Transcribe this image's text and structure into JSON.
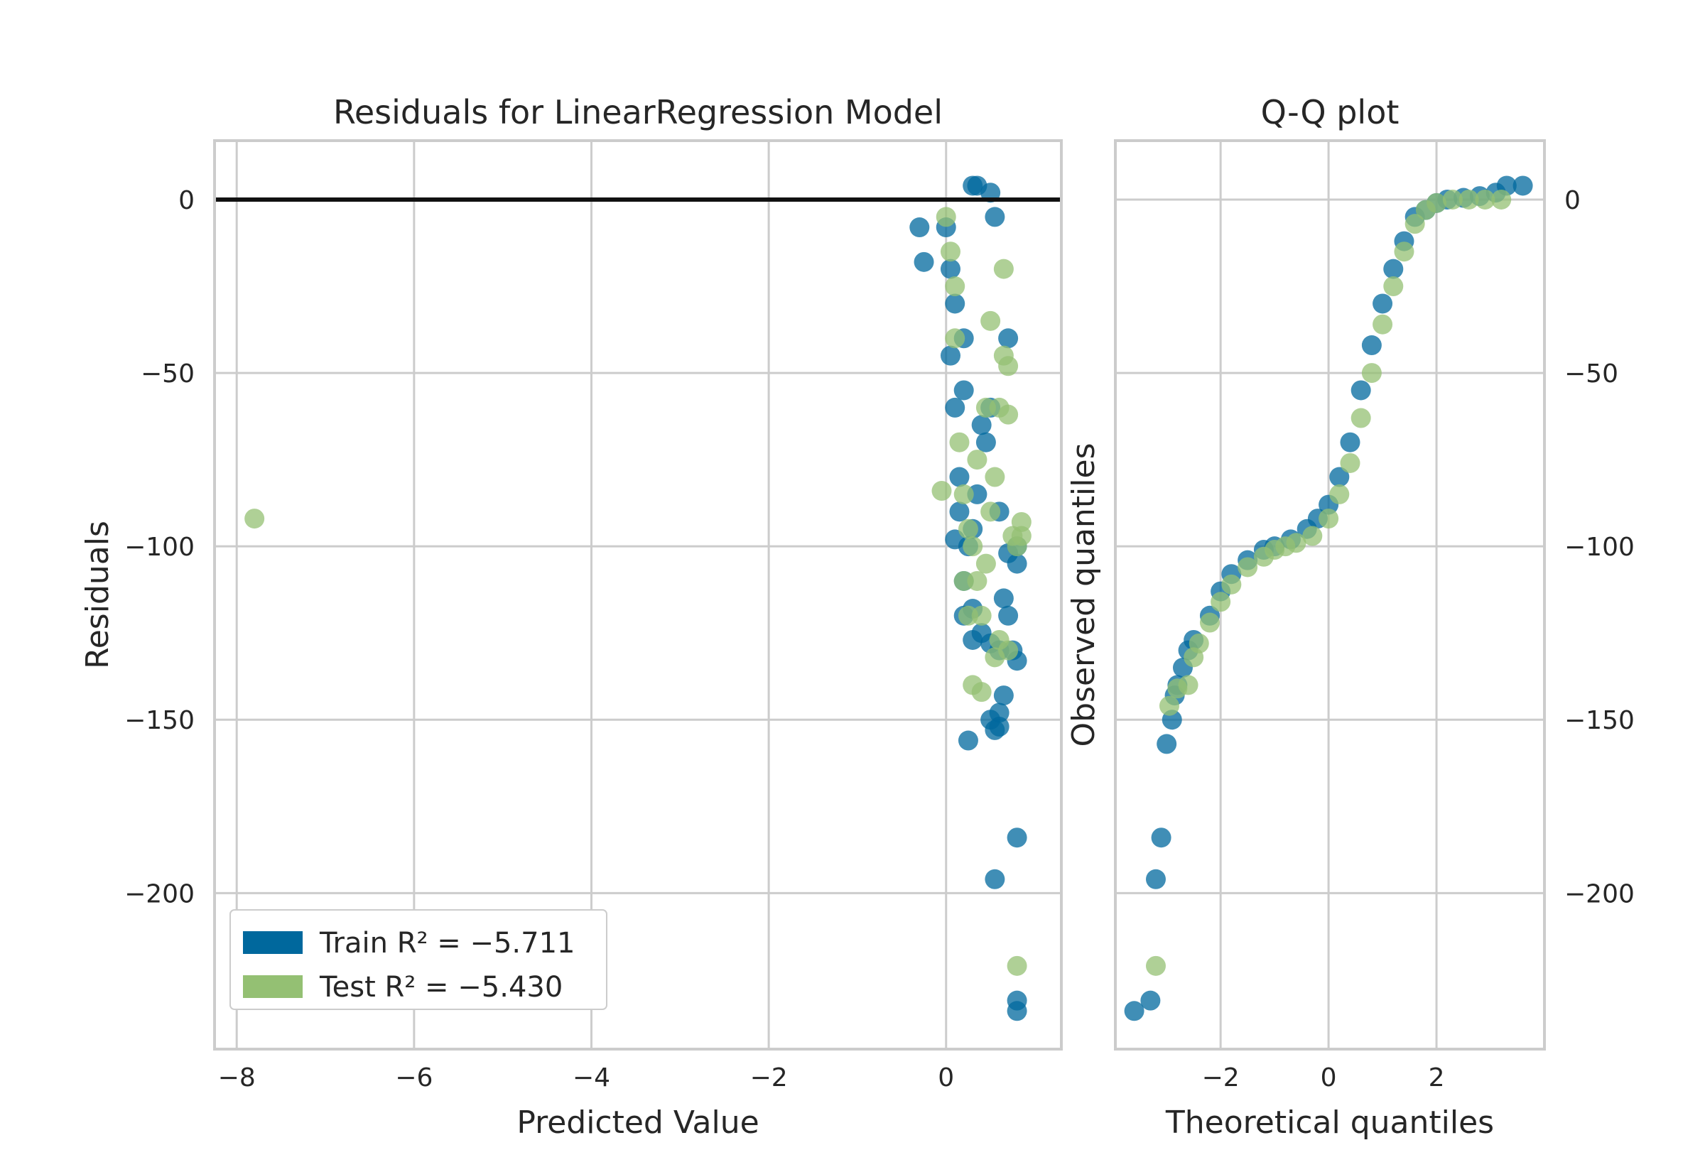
{
  "colors": {
    "train": "#00689d",
    "test": "#94c073",
    "grid": "#cccccc",
    "zero_line": "#111111",
    "text": "#262626"
  },
  "chart_data": [
    {
      "type": "scatter",
      "title": "Residuals for LinearRegression Model",
      "xlabel": "Predicted Value",
      "ylabel": "Residuals",
      "xlim": [
        -8.25,
        1.3
      ],
      "ylim": [
        -245,
        17
      ],
      "xticks": [
        -8,
        -6,
        -4,
        -2,
        0
      ],
      "xtick_labels": [
        "−8",
        "−6",
        "−4",
        "−2",
        "0"
      ],
      "yticks": [
        0,
        -50,
        -100,
        -150,
        -200
      ],
      "ytick_labels": [
        "0",
        "−50",
        "−100",
        "−150",
        "−200"
      ],
      "grid": true,
      "hline_y": 0,
      "legend_position": "lower-left",
      "legend": [
        {
          "series": "Train",
          "label": "Train R² = −5.711"
        },
        {
          "series": "Test",
          "label": "Test R² = −5.430"
        }
      ],
      "series": [
        {
          "name": "Train",
          "x": [
            0.3,
            0.35,
            0.5,
            -0.3,
            -0.25,
            0.0,
            0.1,
            0.2,
            0.15,
            0.3,
            0.5,
            0.6,
            0.1,
            0.05,
            0.7,
            0.8,
            0.6,
            0.5,
            0.4,
            0.3,
            0.2,
            0.7,
            0.8,
            0.75,
            0.8,
            0.65,
            0.6,
            0.55,
            0.8,
            0.55,
            0.8,
            0.8,
            0.05,
            0.1,
            0.15,
            0.2,
            0.25,
            0.45,
            0.55,
            0.65,
            0.3,
            0.35,
            0.4,
            0.2,
            0.5,
            0.6,
            0.7,
            0.25
          ],
          "y": [
            4,
            4,
            2,
            -8,
            -18,
            -8,
            -30,
            -55,
            -80,
            -127,
            -150,
            -152,
            -98,
            -45,
            -102,
            -100,
            -130,
            -128,
            -125,
            -118,
            -120,
            -40,
            -105,
            -130,
            -133,
            -143,
            -148,
            -153,
            -184,
            -196,
            -231,
            -234,
            -20,
            -60,
            -90,
            -110,
            -100,
            -70,
            -5,
            -115,
            -95,
            -85,
            -65,
            -40,
            -60,
            -90,
            -120,
            -156
          ]
        },
        {
          "name": "Test",
          "x": [
            -7.8,
            0.05,
            0.1,
            0.15,
            0.2,
            0.25,
            0.3,
            0.35,
            0.4,
            0.45,
            0.5,
            0.55,
            0.6,
            0.65,
            0.7,
            0.75,
            0.85,
            0.85,
            0.8,
            0.7,
            0.6,
            0.55,
            0.4,
            0.3,
            0.2,
            -0.05,
            0.8,
            0.0,
            0.1,
            0.5,
            0.65,
            0.7,
            0.35,
            0.45,
            0.25
          ],
          "y": [
            -92,
            -15,
            -40,
            -70,
            -85,
            -95,
            -100,
            -110,
            -120,
            -105,
            -90,
            -80,
            -60,
            -45,
            -62,
            -97,
            -93,
            -97,
            -100,
            -130,
            -127,
            -132,
            -142,
            -140,
            -110,
            -84,
            -221,
            -5,
            -25,
            -35,
            -20,
            -48,
            -75,
            -60,
            -120
          ]
        }
      ]
    },
    {
      "type": "scatter",
      "title": "Q-Q plot",
      "xlabel": "Theoretical quantiles",
      "ylabel": "Observed quantiles",
      "xlim": [
        -3.95,
        4.0
      ],
      "ylim": [
        -245,
        17
      ],
      "xticks": [
        -2,
        0,
        2
      ],
      "xtick_labels": [
        "−2",
        "0",
        "2"
      ],
      "yticks": [
        0,
        -50,
        -100,
        -150,
        -200
      ],
      "ytick_labels": [
        "0",
        "−50",
        "−100",
        "−150",
        "−200"
      ],
      "ytick_side": "right",
      "grid": true,
      "series": [
        {
          "name": "Train",
          "x": [
            -3.6,
            -3.3,
            -3.2,
            -3.1,
            -3.0,
            -2.9,
            -2.85,
            -2.8,
            -2.7,
            -2.6,
            -2.5,
            -2.2,
            -2.0,
            -1.8,
            -1.5,
            -1.2,
            -1.0,
            -0.7,
            -0.4,
            -0.2,
            0.0,
            0.2,
            0.4,
            0.6,
            0.8,
            1.0,
            1.2,
            1.4,
            1.6,
            1.8,
            2.0,
            2.2,
            2.5,
            2.8,
            3.1,
            3.3,
            3.6
          ],
          "y": [
            -234,
            -231,
            -196,
            -184,
            -157,
            -150,
            -143,
            -140,
            -135,
            -130,
            -127,
            -120,
            -113,
            -108,
            -104,
            -101,
            -100,
            -98,
            -95,
            -92,
            -88,
            -80,
            -70,
            -55,
            -42,
            -30,
            -20,
            -12,
            -5,
            -3,
            -1,
            0,
            0.5,
            1,
            2,
            4,
            4
          ]
        },
        {
          "name": "Test",
          "x": [
            -3.2,
            -2.95,
            -2.8,
            -2.6,
            -2.5,
            -2.4,
            -2.2,
            -2.0,
            -1.8,
            -1.5,
            -1.2,
            -1.0,
            -0.8,
            -0.6,
            -0.3,
            0.0,
            0.2,
            0.4,
            0.6,
            0.8,
            1.0,
            1.2,
            1.4,
            1.6,
            1.8,
            2.0,
            2.3,
            2.6,
            2.9,
            3.2
          ],
          "y": [
            -221,
            -146,
            -141,
            -140,
            -132,
            -128,
            -122,
            -116,
            -111,
            -106,
            -103,
            -101,
            -100,
            -99,
            -97,
            -92,
            -85,
            -76,
            -63,
            -50,
            -36,
            -25,
            -15,
            -7,
            -3,
            -1,
            0,
            0,
            0,
            0
          ]
        }
      ]
    }
  ]
}
